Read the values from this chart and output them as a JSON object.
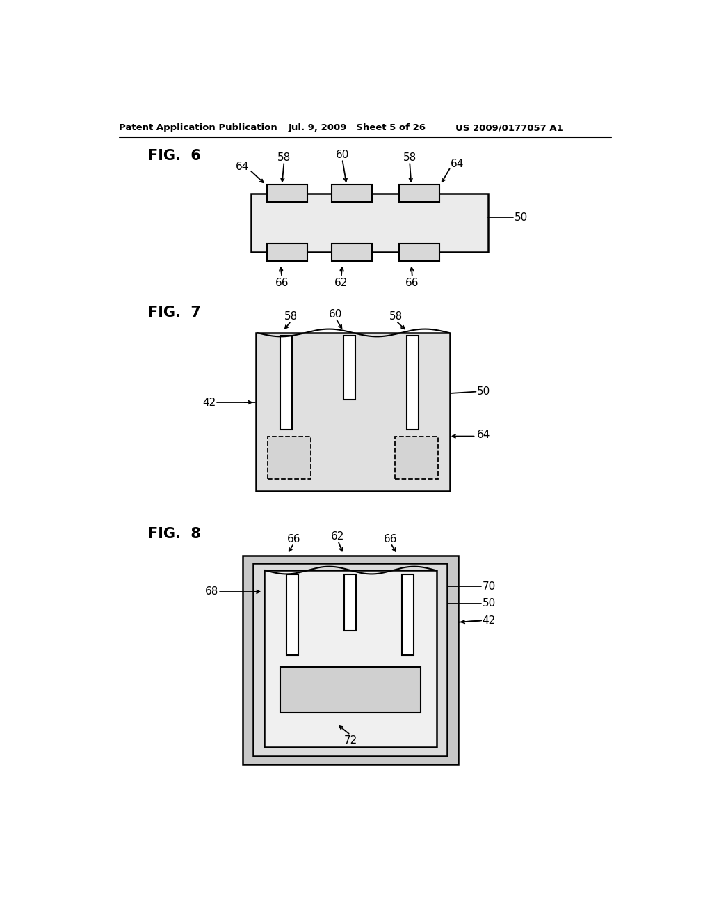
{
  "bg_color": "#ffffff",
  "header_left": "Patent Application Publication",
  "header_mid": "Jul. 9, 2009   Sheet 5 of 26",
  "header_right": "US 2009/0177057 A1",
  "fig6_label": "FIG.  6",
  "fig7_label": "FIG.  7",
  "fig8_label": "FIG.  8",
  "line_color": "#000000",
  "body_fill": "#e8e8e8",
  "pad_fill": "#d0d0d0",
  "white": "#ffffff",
  "dark_fill": "#b0b0b0"
}
